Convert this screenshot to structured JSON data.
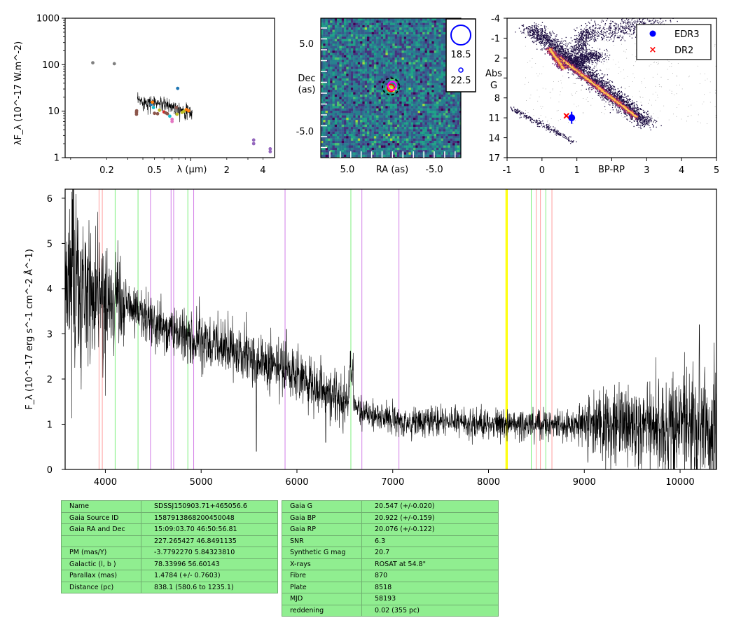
{
  "colors": {
    "line_red": "#ff9e9e",
    "line_green": "#7ef07e",
    "line_violet": "#d27ee8",
    "line_yellow": "#ffff00",
    "table_bg": "#90ee90",
    "edr3": "#0000ff",
    "dr2": "#ff0000"
  },
  "sed": {
    "ylabel": "λF_λ (10^-17 W.m^-2)",
    "xlabel": "λ (μm)",
    "xticks": [
      "0.2",
      "0.5",
      "2",
      "4"
    ],
    "yticks": [
      "1",
      "10",
      "100",
      "1000"
    ]
  },
  "image": {
    "xlabel": "RA (as)",
    "ylabel_1": "Dec",
    "ylabel_2": "(as)",
    "xticks": [
      "5.0",
      "-5.0"
    ],
    "yticks": [
      "5.0",
      "-5.0"
    ],
    "legend_mags": [
      "18.5",
      "22.5"
    ]
  },
  "hr": {
    "xlabel": "BP-RP",
    "ylabel_1": "Abs",
    "ylabel_2": "G",
    "xticks": [
      "-1",
      "0",
      "1",
      "3",
      "4",
      "5"
    ],
    "yticks": [
      "-4",
      "-1",
      "2",
      "5",
      "8",
      "11",
      "14",
      "17"
    ],
    "legend": [
      "EDR3",
      "DR2"
    ]
  },
  "spectrum": {
    "ylabel": "F_λ (10^-17 erg s^-1 cm^-2 Å^-1)",
    "xticks": [
      "4000",
      "5000",
      "6000",
      "7000",
      "8000",
      "9000",
      "10000"
    ],
    "yticks": [
      "0",
      "1",
      "2",
      "3",
      "4",
      "5",
      "6"
    ]
  },
  "table1": {
    "rows": [
      {
        "k": "Name",
        "v": "SDSSJ150903.71+465056.6"
      },
      {
        "k": "Gaia Source ID",
        "v": "1587913868200450048"
      },
      {
        "k": "Gaia RA and Dec",
        "v": "15:09:03.70    46:50:56.81"
      },
      {
        "k": "",
        "v": "227.265427    46.8491135"
      },
      {
        "k": "PM (mas/Y)",
        "v": "-3.7792270    5.84323810"
      },
      {
        "k": "Galactic (l, b )",
        "v": "78.33996    56.60143"
      },
      {
        "k": "Parallax (mas)",
        "v": "1.4784 (+/- 0.7603)"
      },
      {
        "k": "Distance (pc)",
        "v": "838.1 (580.6 to 1235.1)"
      }
    ]
  },
  "table2": {
    "rows": [
      {
        "k": "Gaia G",
        "v": "20.547 (+/-0.020)"
      },
      {
        "k": "Gaia BP",
        "v": "20.922 (+/-0.159)"
      },
      {
        "k": "Gaia RP",
        "v": "20.076 (+/-0.122)"
      },
      {
        "k": "SNR",
        "v": "6.3"
      },
      {
        "k": "Synthetic G mag",
        "v": "20.7"
      },
      {
        "k": "X-rays",
        "v": "ROSAT at 54.8\""
      },
      {
        "k": "Fibre",
        "v": "870"
      },
      {
        "k": "Plate",
        "v": "8518"
      },
      {
        "k": "MJD",
        "v": "58193"
      },
      {
        "k": "reddening",
        "v": "0.02 (355 pc)"
      }
    ]
  },
  "chart_data": [
    {
      "type": "scatter",
      "name": "sed",
      "xscale": "log",
      "yscale": "log",
      "xlim": [
        0.09,
        5.0
      ],
      "ylim": [
        1,
        1000
      ],
      "points": [
        {
          "x": 0.153,
          "y": 110,
          "c": "#808080"
        },
        {
          "x": 0.231,
          "y": 105,
          "c": "#808080"
        },
        {
          "x": 0.354,
          "y": 9.5,
          "c": "#8c564b"
        },
        {
          "x": 0.354,
          "y": 8.6,
          "c": "#8c564b"
        },
        {
          "x": 0.355,
          "y": 10.2,
          "c": "#8c564b"
        },
        {
          "x": 0.47,
          "y": 14,
          "c": "#1f77b4"
        },
        {
          "x": 0.48,
          "y": 15.5,
          "c": "#ff7f0e"
        },
        {
          "x": 0.49,
          "y": 12,
          "c": "#17becf"
        },
        {
          "x": 0.5,
          "y": 9,
          "c": "#8c564b"
        },
        {
          "x": 0.53,
          "y": 8.8,
          "c": "#8c564b"
        },
        {
          "x": 0.55,
          "y": 10.5,
          "c": "#bcbd22"
        },
        {
          "x": 0.6,
          "y": 9.6,
          "c": "#d62728"
        },
        {
          "x": 0.62,
          "y": 9.2,
          "c": "#8c564b"
        },
        {
          "x": 0.64,
          "y": 8.8,
          "c": "#8c564b"
        },
        {
          "x": 0.67,
          "y": 7.8,
          "c": "#17becf"
        },
        {
          "x": 0.7,
          "y": 6.7,
          "c": "#e377c2"
        },
        {
          "x": 0.7,
          "y": 6.0,
          "c": "#e377c2"
        },
        {
          "x": 0.75,
          "y": 10.5,
          "c": "#7f7f7f"
        },
        {
          "x": 0.76,
          "y": 12,
          "c": "#8c564b"
        },
        {
          "x": 0.77,
          "y": 8.6,
          "c": "#bcbd22"
        },
        {
          "x": 0.78,
          "y": 31,
          "c": "#1f77b4"
        },
        {
          "x": 0.85,
          "y": 9.4,
          "c": "#bcbd22"
        },
        {
          "x": 0.88,
          "y": 10,
          "c": "#bcbd22"
        },
        {
          "x": 0.92,
          "y": 10.8,
          "c": "#ff7f0e"
        },
        {
          "x": 0.96,
          "y": 10.2,
          "c": "#ff7f0e"
        },
        {
          "x": 3.35,
          "y": 2.4,
          "c": "#9467bd"
        },
        {
          "x": 3.35,
          "y": 2.0,
          "c": "#9467bd"
        },
        {
          "x": 4.6,
          "y": 1.55,
          "c": "#9467bd"
        },
        {
          "x": 4.6,
          "y": 1.35,
          "c": "#9467bd"
        }
      ],
      "spectrum_range_um": [
        0.36,
        1.03
      ]
    },
    {
      "type": "heatmap",
      "name": "image",
      "xlim": [
        9,
        -9
      ],
      "ylim": [
        -9,
        9
      ],
      "source": {
        "ra": 0,
        "dec": 0
      }
    },
    {
      "type": "scatter",
      "name": "hr",
      "xlim": [
        -1,
        5
      ],
      "ylim": [
        17,
        -4
      ],
      "edr3": {
        "x": 0.85,
        "y": 11.0,
        "yerr": 0.9
      },
      "dr2": {
        "x": 0.7,
        "y": 10.7
      }
    },
    {
      "type": "line",
      "name": "spectrum",
      "xlim": [
        3580,
        10380
      ],
      "ylim": [
        0,
        6.2
      ],
      "anchors": [
        [
          3580,
          4.3
        ],
        [
          3700,
          4.1
        ],
        [
          4000,
          3.8
        ],
        [
          4300,
          3.55
        ],
        [
          4600,
          3.15
        ],
        [
          5000,
          2.85
        ],
        [
          5500,
          2.5
        ],
        [
          6000,
          2.1
        ],
        [
          6300,
          1.7
        ],
        [
          6500,
          1.5
        ],
        [
          6700,
          1.28
        ],
        [
          7000,
          1.1
        ],
        [
          7500,
          1.05
        ],
        [
          8000,
          1.02
        ],
        [
          8500,
          1.0
        ],
        [
          9000,
          0.98
        ],
        [
          9500,
          0.95
        ],
        [
          10000,
          0.93
        ],
        [
          10380,
          0.9
        ]
      ],
      "features": [
        [
          5577,
          0.4
        ],
        [
          5890,
          3.1
        ],
        [
          6300,
          0.6
        ],
        [
          6563,
          2.4
        ],
        [
          10200,
          3.2
        ]
      ],
      "lines": [
        {
          "x": 3934,
          "c": "red"
        },
        {
          "x": 3968,
          "c": "red"
        },
        {
          "x": 4102,
          "c": "green"
        },
        {
          "x": 4341,
          "c": "green"
        },
        {
          "x": 4471,
          "c": "violet"
        },
        {
          "x": 4686,
          "c": "violet"
        },
        {
          "x": 4713,
          "c": "violet"
        },
        {
          "x": 4861,
          "c": "green"
        },
        {
          "x": 4922,
          "c": "violet"
        },
        {
          "x": 5876,
          "c": "violet"
        },
        {
          "x": 6563,
          "c": "green"
        },
        {
          "x": 6678,
          "c": "violet"
        },
        {
          "x": 7065,
          "c": "violet"
        },
        {
          "x": 8183,
          "c": "yellow"
        },
        {
          "x": 8195,
          "c": "yellow"
        },
        {
          "x": 8446,
          "c": "green"
        },
        {
          "x": 8498,
          "c": "red"
        },
        {
          "x": 8542,
          "c": "red"
        },
        {
          "x": 8598,
          "c": "green"
        },
        {
          "x": 8662,
          "c": "red"
        }
      ]
    }
  ]
}
